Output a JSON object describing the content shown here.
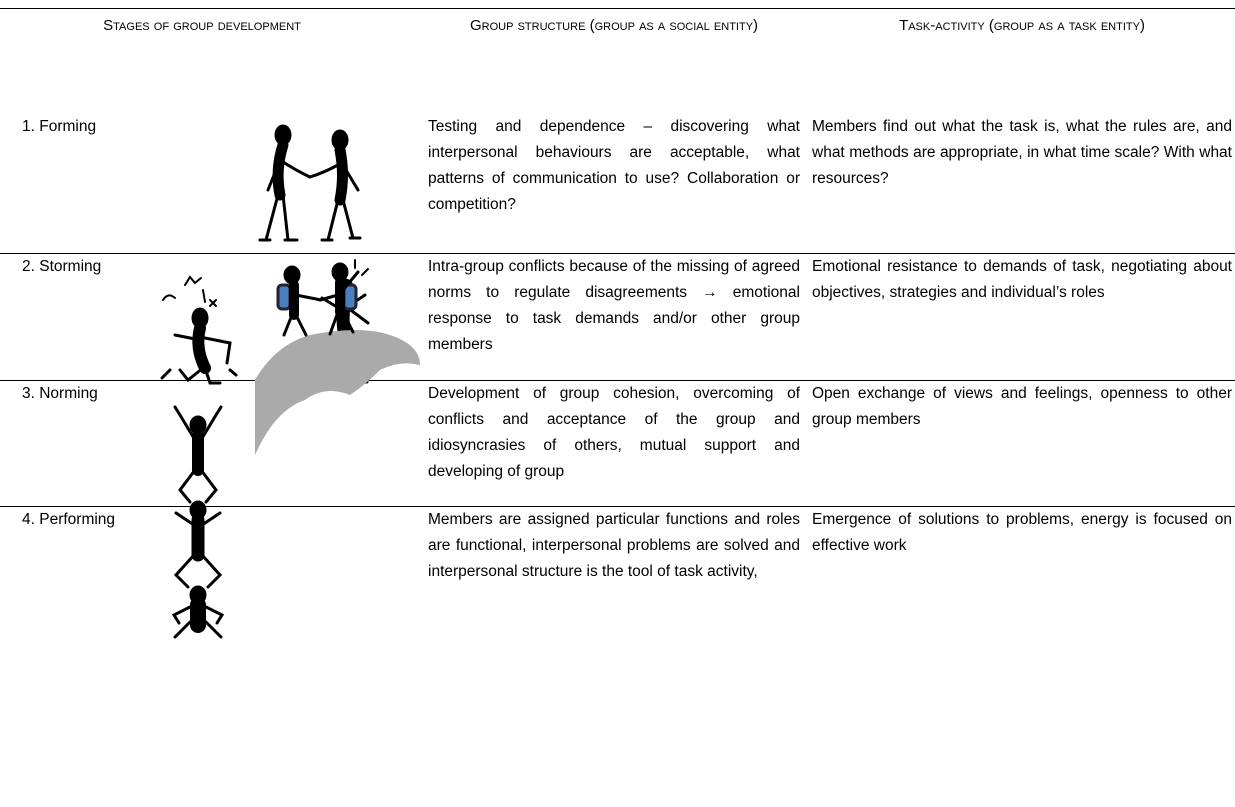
{
  "table": {
    "header": [
      "Stages of group development",
      "Group structure (group as a social entity)",
      "Task-activity (group as a task entity)"
    ],
    "rows": [
      [
        "1. Forming",
        "Testing and dependence – discovering what interpersonal behaviours are acceptable, what patterns of communication to use? Collaboration or competition?",
        "Members find out what the task is, what the rules are, and what methods are appropriate, in what time scale? With what resources?"
      ],
      [
        "2. Storming",
        "Intra-group conflicts because of the missing of agreed norms to regulate disagreements → emotional response to task demands and/or other group members",
        "Emotional resistance to demands of task, negotiating about objectives, strategies and individual’s roles"
      ],
      [
        "3. Norming",
        "Development of group cohesion, overcoming of conflicts and acceptance of the group and idiosyncrasies of others, mutual support and developing of group",
        "Open exchange of views and feelings, openness to other group members"
      ],
      [
        "4. Performing",
        "Members are assigned particular functions and roles are functional, interpersonal problems are solved and interpersonal structure is the tool of task activity,",
        "Emergence of solutions to problems, energy is focused on effective work"
      ]
    ]
  }
}
